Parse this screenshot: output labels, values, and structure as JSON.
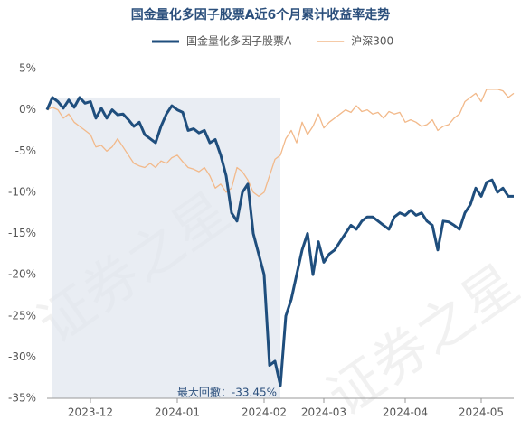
{
  "chart_data": {
    "type": "line",
    "title": "国金量化多因子股票A近6个月累计收益率走势",
    "watermark": "证券之星",
    "annotation": "最大回撤：-33.45%",
    "categories": [
      null,
      null,
      null,
      null,
      null,
      null,
      null,
      null,
      "2023-12",
      null,
      null,
      null,
      null,
      null,
      null,
      null,
      null,
      null,
      null,
      null,
      null,
      null,
      null,
      null,
      "2024-01",
      null,
      null,
      null,
      null,
      null,
      null,
      null,
      null,
      null,
      null,
      null,
      null,
      null,
      null,
      null,
      "2024-02",
      null,
      null,
      null,
      null,
      null,
      null,
      null,
      null,
      null,
      null,
      "2024-03",
      null,
      null,
      null,
      null,
      null,
      null,
      null,
      null,
      null,
      null,
      null,
      null,
      null,
      null,
      "2024-04",
      null,
      null,
      null,
      null,
      null,
      null,
      null,
      null,
      null,
      null,
      null,
      null,
      null,
      "2024-05",
      null,
      null,
      null,
      null,
      null,
      null
    ],
    "series": [
      {
        "name": "国金量化多因子股票A",
        "color": "#1f4e7d",
        "values": [
          0,
          1.5,
          1,
          0.2,
          1.2,
          0.3,
          1.5,
          0.8,
          1,
          -1,
          0.2,
          -1,
          0,
          -0.6,
          -0.5,
          -1.2,
          -2,
          -1.5,
          -3,
          -3.5,
          -4,
          -2,
          -0.5,
          0.5,
          0,
          -0.3,
          -2.5,
          -2.3,
          -2.8,
          -2.5,
          -4,
          -3.6,
          -5.5,
          -8,
          -12.5,
          -13.5,
          -10,
          -9,
          -15,
          -17.5,
          -20,
          -31,
          -30.5,
          -33.45,
          -25,
          -23,
          -20,
          -17,
          -15,
          -20,
          -16,
          -18.5,
          -17.5,
          -17,
          -16,
          -15,
          -14,
          -14.5,
          -13.5,
          -13,
          -13,
          -13.5,
          -14,
          -14.5,
          -13,
          -12.5,
          -12.8,
          -12.2,
          -12.8,
          -12.5,
          -13.5,
          -14,
          -17,
          -13.5,
          -13.6,
          -14,
          -14.5,
          -12.5,
          -11.5,
          -9.5,
          -10.5,
          -8.8,
          -8.5,
          -10,
          -9.5,
          -10.5,
          -10.5
        ]
      },
      {
        "name": "沪深300",
        "color": "#f2b98a",
        "values": [
          0,
          0.3,
          0,
          -1,
          -0.5,
          -1.5,
          -2,
          -2.5,
          -3,
          -4.5,
          -4.3,
          -5,
          -4.5,
          -3.5,
          -4.5,
          -5.5,
          -6.5,
          -6.8,
          -7,
          -6.5,
          -7,
          -6.2,
          -6.5,
          -5.8,
          -5.5,
          -6.3,
          -7,
          -7.2,
          -7.5,
          -7,
          -8,
          -9.5,
          -9,
          -10,
          -9.5,
          -7,
          -7.5,
          -8.5,
          -10,
          -10.5,
          -10,
          -8,
          -6,
          -5.5,
          -3.5,
          -2.5,
          -4,
          -1.5,
          -3,
          -2,
          -0.5,
          -2.2,
          -1.5,
          -1,
          -0.5,
          0,
          -0.3,
          0.5,
          -0.2,
          0,
          -0.5,
          -0.3,
          -1,
          -0.2,
          -0.5,
          -0.3,
          -1.5,
          -1.2,
          -1.5,
          -2,
          -1.8,
          -1.2,
          -2.5,
          -2,
          -1.8,
          -1,
          -0.5,
          1,
          1.5,
          2,
          1,
          2.5,
          2.5,
          2.5,
          2.3,
          1.5,
          2
        ]
      }
    ],
    "ylim": [
      -35,
      5
    ],
    "yticks": [
      {
        "value": 5,
        "label": "5%"
      },
      {
        "value": 0,
        "label": "0%"
      },
      {
        "value": -5,
        "label": "-5%"
      },
      {
        "value": -10,
        "label": "-10%"
      },
      {
        "value": -15,
        "label": "-15%"
      },
      {
        "value": -20,
        "label": "-20%"
      },
      {
        "value": -25,
        "label": "-25%"
      },
      {
        "value": -30,
        "label": "-30%"
      },
      {
        "value": -35,
        "label": "-35%"
      }
    ],
    "grid": false
  }
}
